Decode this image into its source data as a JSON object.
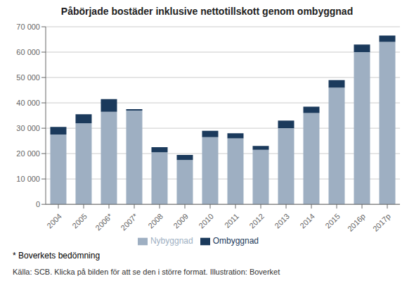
{
  "chart_data": {
    "type": "bar",
    "title": "Påbörjade bostäder inklusive nettotillskott genom ombyggnad",
    "categories": [
      "2004",
      "2005",
      "2006*",
      "2007*",
      "2008",
      "2009",
      "2010",
      "2011",
      "2012",
      "2013",
      "2014",
      "2015",
      "2016p",
      "2017p"
    ],
    "series": [
      {
        "name": "Nybyggnad",
        "color": "#9EAFC2",
        "values": [
          27500,
          32000,
          36500,
          37000,
          20500,
          17500,
          26500,
          26000,
          21500,
          30000,
          36000,
          46000,
          60000,
          64000
        ]
      },
      {
        "name": "Ombyggnad",
        "color": "#1B3A5C",
        "values": [
          3000,
          3500,
          5000,
          500,
          2000,
          2000,
          2500,
          2000,
          1500,
          3000,
          2500,
          3000,
          3000,
          2500
        ]
      }
    ],
    "stacked": true,
    "ylim": [
      0,
      70000
    ],
    "yticks": [
      0,
      {
        "value": 10000,
        "label": "10 000"
      },
      {
        "value": 20000,
        "label": "20 000"
      },
      {
        "value": 30000,
        "label": "30 000"
      },
      {
        "value": 40000,
        "label": "40 000"
      },
      {
        "value": 50000,
        "label": "50 000"
      },
      {
        "value": 60000,
        "label": "60 000"
      },
      {
        "value": 70000,
        "label": "70 000"
      }
    ],
    "grid": true,
    "legend": "bottom",
    "annotations": [
      "* Boverkets bedömning",
      "Källa: SCB. Klicka på bilden för att se den i större format. Illustration: Boverket"
    ]
  }
}
